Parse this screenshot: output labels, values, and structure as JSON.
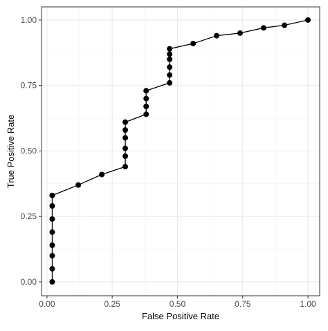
{
  "chart_data": {
    "type": "line",
    "x_label": "False Positive Rate",
    "y_label": "True Positive Rate",
    "xlim": [
      -0.021,
      1.045
    ],
    "ylim": [
      -0.053,
      1.05
    ],
    "xticks": [
      {
        "value": 0,
        "label": "0.00"
      },
      {
        "value": 0.25,
        "label": "0.25"
      },
      {
        "value": 0.5,
        "label": "0.50"
      },
      {
        "value": 0.75,
        "label": "0.75"
      },
      {
        "value": 1,
        "label": "1.00"
      }
    ],
    "yticks": [
      {
        "value": 0,
        "label": "0.00"
      },
      {
        "value": 0.25,
        "label": "0.25"
      },
      {
        "value": 0.5,
        "label": "0.50"
      },
      {
        "value": 0.75,
        "label": "0.75"
      },
      {
        "value": 1,
        "label": "1.00"
      }
    ],
    "grid": true,
    "minor_grid": true,
    "series": [
      {
        "color": "#000000",
        "x": [
          0.02,
          0.02,
          0.02,
          0.02,
          0.02,
          0.02,
          0.02,
          0.02,
          0.12,
          0.21,
          0.3,
          0.3,
          0.3,
          0.3,
          0.3,
          0.3,
          0.38,
          0.38,
          0.38,
          0.38,
          0.47,
          0.47,
          0.47,
          0.47,
          0.47,
          0.47,
          0.56,
          0.65,
          0.74,
          0.83,
          0.91,
          1.0
        ],
        "values": [
          0,
          0.05,
          0.1,
          0.14,
          0.19,
          0.24,
          0.29,
          0.33,
          0.37,
          0.41,
          0.44,
          0.48,
          0.51,
          0.55,
          0.58,
          0.61,
          0.64,
          0.67,
          0.7,
          0.73,
          0.76,
          0.79,
          0.82,
          0.85,
          0.87,
          0.89,
          0.91,
          0.94,
          0.95,
          0.97,
          0.98,
          1.0
        ]
      }
    ]
  }
}
